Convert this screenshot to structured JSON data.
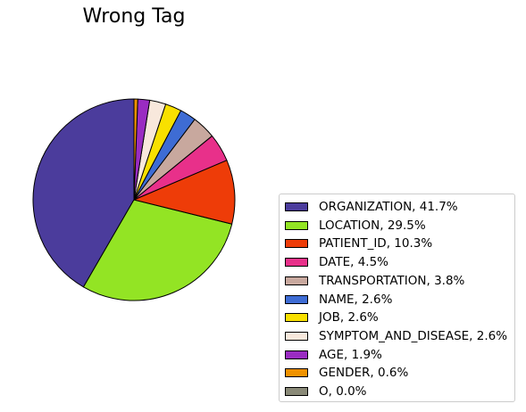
{
  "chart_data": {
    "type": "pie",
    "title": "Wrong Tag",
    "legend_position": "bottom-right",
    "slices": [
      {
        "label": "ORGANIZATION, 41.7%",
        "value": 41.7,
        "color": "#4b3c9c"
      },
      {
        "label": "LOCATION, 29.5%",
        "value": 29.5,
        "color": "#93e424"
      },
      {
        "label": "PATIENT_ID, 10.3%",
        "value": 10.3,
        "color": "#ee3c08"
      },
      {
        "label": "DATE, 4.5%",
        "value": 4.5,
        "color": "#e8308a"
      },
      {
        "label": "TRANSPORTATION, 3.8%",
        "value": 3.8,
        "color": "#c8a89e"
      },
      {
        "label": "NAME, 2.6%",
        "value": 2.6,
        "color": "#3e6cd4"
      },
      {
        "label": "JOB, 2.6%",
        "value": 2.6,
        "color": "#f8e000"
      },
      {
        "label": "SYMPTOM_AND_DISEASE, 2.6%",
        "value": 2.6,
        "color": "#f8e8dc"
      },
      {
        "label": "AGE, 1.9%",
        "value": 1.9,
        "color": "#9a2cc2"
      },
      {
        "label": "GENDER, 0.6%",
        "value": 0.6,
        "color": "#f09200"
      },
      {
        "label": "O, 0.0%",
        "value": 0.0,
        "color": "#8a8a78"
      }
    ]
  }
}
